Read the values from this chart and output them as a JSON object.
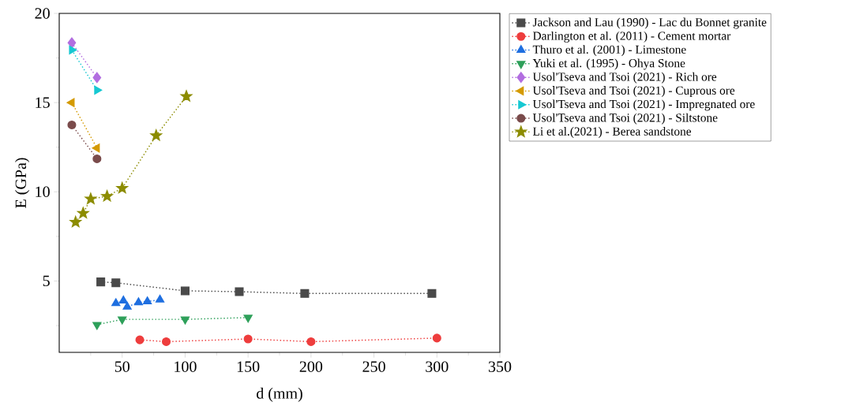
{
  "chart_data": {
    "type": "line",
    "xlabel": "d (mm)",
    "ylabel": "E (GPa)",
    "xlim": [
      0,
      350
    ],
    "ylim": [
      1,
      20
    ],
    "xticks": [
      {
        "value": 25,
        "label": null
      },
      50,
      {
        "value": 75,
        "label": null
      },
      100,
      {
        "value": 125,
        "label": null
      },
      150,
      {
        "value": 175,
        "label": null
      },
      200,
      {
        "value": 225,
        "label": null
      },
      250,
      {
        "value": 275,
        "label": null
      },
      300,
      {
        "value": 325,
        "label": null
      },
      350
    ],
    "yticks": [
      {
        "value": 2.5,
        "label": null
      },
      5,
      {
        "value": 7.5,
        "label": null
      },
      10,
      {
        "value": 12.5,
        "label": null
      },
      15,
      {
        "value": 17.5,
        "label": null
      },
      20
    ],
    "grid": false,
    "legend": "right",
    "line_style": "dotted",
    "series": [
      {
        "name": "Jackson and Lau (1990) - Lac du Bonnet granite",
        "color": "#4a4a4a",
        "marker": "square",
        "x": [
          33,
          45,
          100,
          143,
          195,
          296
        ],
        "values": [
          4.95,
          4.9,
          4.45,
          4.4,
          4.3,
          4.3
        ]
      },
      {
        "name": "Darlington et al. (2011) - Cement mortar",
        "color": "#ee3d3d",
        "marker": "circle",
        "x": [
          64,
          85,
          150,
          200,
          300
        ],
        "values": [
          1.7,
          1.6,
          1.75,
          1.6,
          1.8
        ]
      },
      {
        "name": "Thuro et al. (2001) - Limestone",
        "color": "#1f6fe0",
        "marker": "triangle",
        "x": [
          45,
          51,
          54,
          63,
          70,
          80
        ],
        "values": [
          3.75,
          3.9,
          3.55,
          3.8,
          3.85,
          3.95
        ]
      },
      {
        "name": "Yuki et al. (1995) - Ohya Stone",
        "color": "#2ea05a",
        "marker": "triangle-down",
        "x": [
          30,
          50,
          100,
          150
        ],
        "values": [
          2.55,
          2.85,
          2.85,
          2.95
        ]
      },
      {
        "name": "Usol'Tseva and Tsoi (2021) - Rich ore",
        "color": "#b26ee0",
        "marker": "diamond",
        "x": [
          10,
          30
        ],
        "values": [
          18.35,
          16.4
        ]
      },
      {
        "name": "Usol'Tseva and Tsoi (2021) - Cuprous ore",
        "color": "#d49a00",
        "marker": "triangle-left",
        "x": [
          10,
          30
        ],
        "values": [
          15.0,
          12.45
        ]
      },
      {
        "name": "Usol'Tseva and Tsoi (2021) - Impregnated ore",
        "color": "#16c8d2",
        "marker": "triangle-right",
        "x": [
          10,
          30
        ],
        "values": [
          17.95,
          15.7
        ]
      },
      {
        "name": "Usol'Tseva and Tsoi (2021) - Siltstone",
        "color": "#7a4b4b",
        "marker": "circle",
        "x": [
          10,
          30
        ],
        "values": [
          13.75,
          11.85
        ]
      },
      {
        "name": "Li et al.(2021) - Berea sandstone",
        "color": "#8c8c00",
        "marker": "star",
        "x": [
          13,
          19,
          25,
          38,
          50,
          77,
          101
        ],
        "values": [
          8.3,
          8.8,
          9.6,
          9.75,
          10.2,
          13.15,
          15.35
        ]
      }
    ]
  }
}
